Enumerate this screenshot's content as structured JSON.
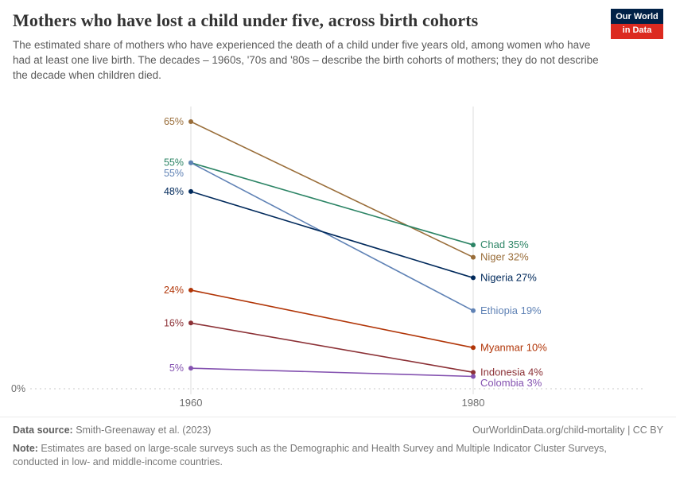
{
  "header": {
    "title": "Mothers who have lost a child under five, across birth cohorts",
    "subtitle": "The estimated share of mothers who have experienced the death of a child under five years old, among women who have had at least one live birth. The decades – 1960s, '70s and '80s – describe the birth cohorts of mothers; they do not describe the decade when children died.",
    "logo": {
      "line1": "Our World",
      "line2": "in Data"
    }
  },
  "chart_data": {
    "type": "line",
    "title": "Mothers who have lost a child under five, across birth cohorts",
    "x": [
      1960,
      1980
    ],
    "x_tick_labels": [
      "1960",
      "1980"
    ],
    "ylim": [
      0,
      65
    ],
    "baseline_label": "0%",
    "legend_position": "end-of-line labels",
    "grid": "vertical gridlines at x ticks, dashed zero baseline",
    "series": [
      {
        "name": "Niger",
        "color": "#996d39",
        "values": [
          65,
          32
        ],
        "start_label": "65%",
        "end_label": "32%"
      },
      {
        "name": "Chad",
        "color": "#2c8465",
        "values": [
          55,
          35
        ],
        "start_label": "55%",
        "end_label": "35%"
      },
      {
        "name": "Ethiopia",
        "color": "#5f82b5",
        "values": [
          55,
          19
        ],
        "start_label": "55%",
        "end_label": "19%"
      },
      {
        "name": "Nigeria",
        "color": "#00295b",
        "values": [
          48,
          27
        ],
        "start_label": "48%",
        "end_label": "27%"
      },
      {
        "name": "Myanmar",
        "color": "#b13507",
        "values": [
          24,
          10
        ],
        "start_label": "24%",
        "end_label": "10%"
      },
      {
        "name": "Indonesia",
        "color": "#8c3136",
        "values": [
          16,
          4
        ],
        "start_label": "16%",
        "end_label": "4%"
      },
      {
        "name": "Colombia",
        "color": "#8452b0",
        "values": [
          5,
          3
        ],
        "start_label": "5%",
        "end_label": "3%"
      }
    ]
  },
  "footer": {
    "datasource_label": "Data source:",
    "datasource_value": " Smith-Greenaway et al. (2023)",
    "link": "OurWorldinData.org/child-mortality | CC BY",
    "note_label": "Note:",
    "note_value": " Estimates are based on large-scale surveys such as the Demographic and Health Survey and Multiple Indicator Cluster Surveys, conducted in low- and middle-income countries."
  }
}
